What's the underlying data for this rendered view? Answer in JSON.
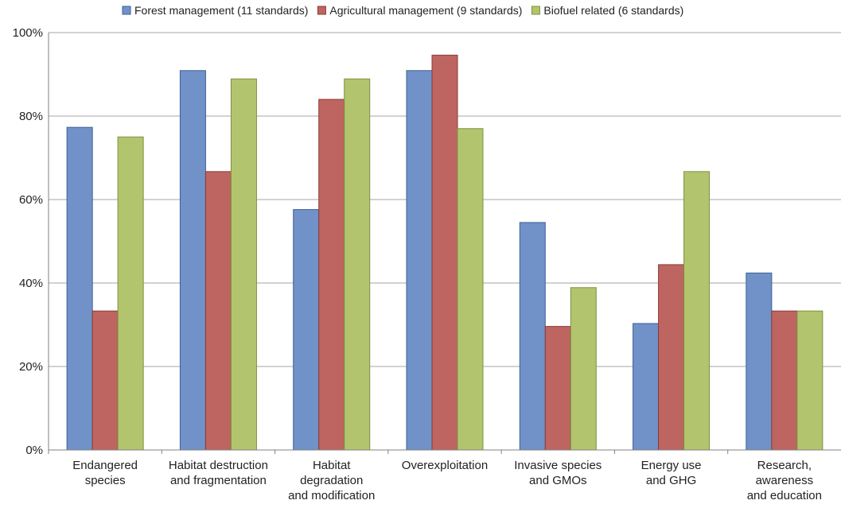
{
  "chart_data": {
    "type": "bar",
    "categories": [
      [
        "Endangered",
        "species"
      ],
      [
        "Habitat destruction",
        "and fragmentation"
      ],
      [
        "Habitat",
        "degradation",
        "and modification"
      ],
      [
        "Overexploitation"
      ],
      [
        "Invasive species",
        "and GMOs"
      ],
      [
        "Energy use",
        "and GHG"
      ],
      [
        "Research,",
        "awareness",
        "and education"
      ]
    ],
    "series": [
      {
        "name": "Forest management (11 standards)",
        "color": "#7092c8",
        "stroke": "#3d5f95",
        "values": [
          77.3,
          90.9,
          57.6,
          90.9,
          54.5,
          30.3,
          42.4
        ]
      },
      {
        "name": "Agricultural management (9 standards)",
        "color": "#be6561",
        "stroke": "#8a3b37",
        "values": [
          33.3,
          66.7,
          84.0,
          94.6,
          29.6,
          44.4,
          33.3
        ]
      },
      {
        "name": "Biofuel related (6 standards)",
        "color": "#b2c56e",
        "stroke": "#7d9140",
        "values": [
          75.0,
          88.9,
          88.9,
          77.0,
          38.9,
          66.7,
          33.3
        ]
      }
    ],
    "yticks": [
      "0%",
      "20%",
      "40%",
      "60%",
      "80%",
      "100%"
    ],
    "ylim": [
      0,
      100
    ],
    "grid": true,
    "legend": "top"
  }
}
